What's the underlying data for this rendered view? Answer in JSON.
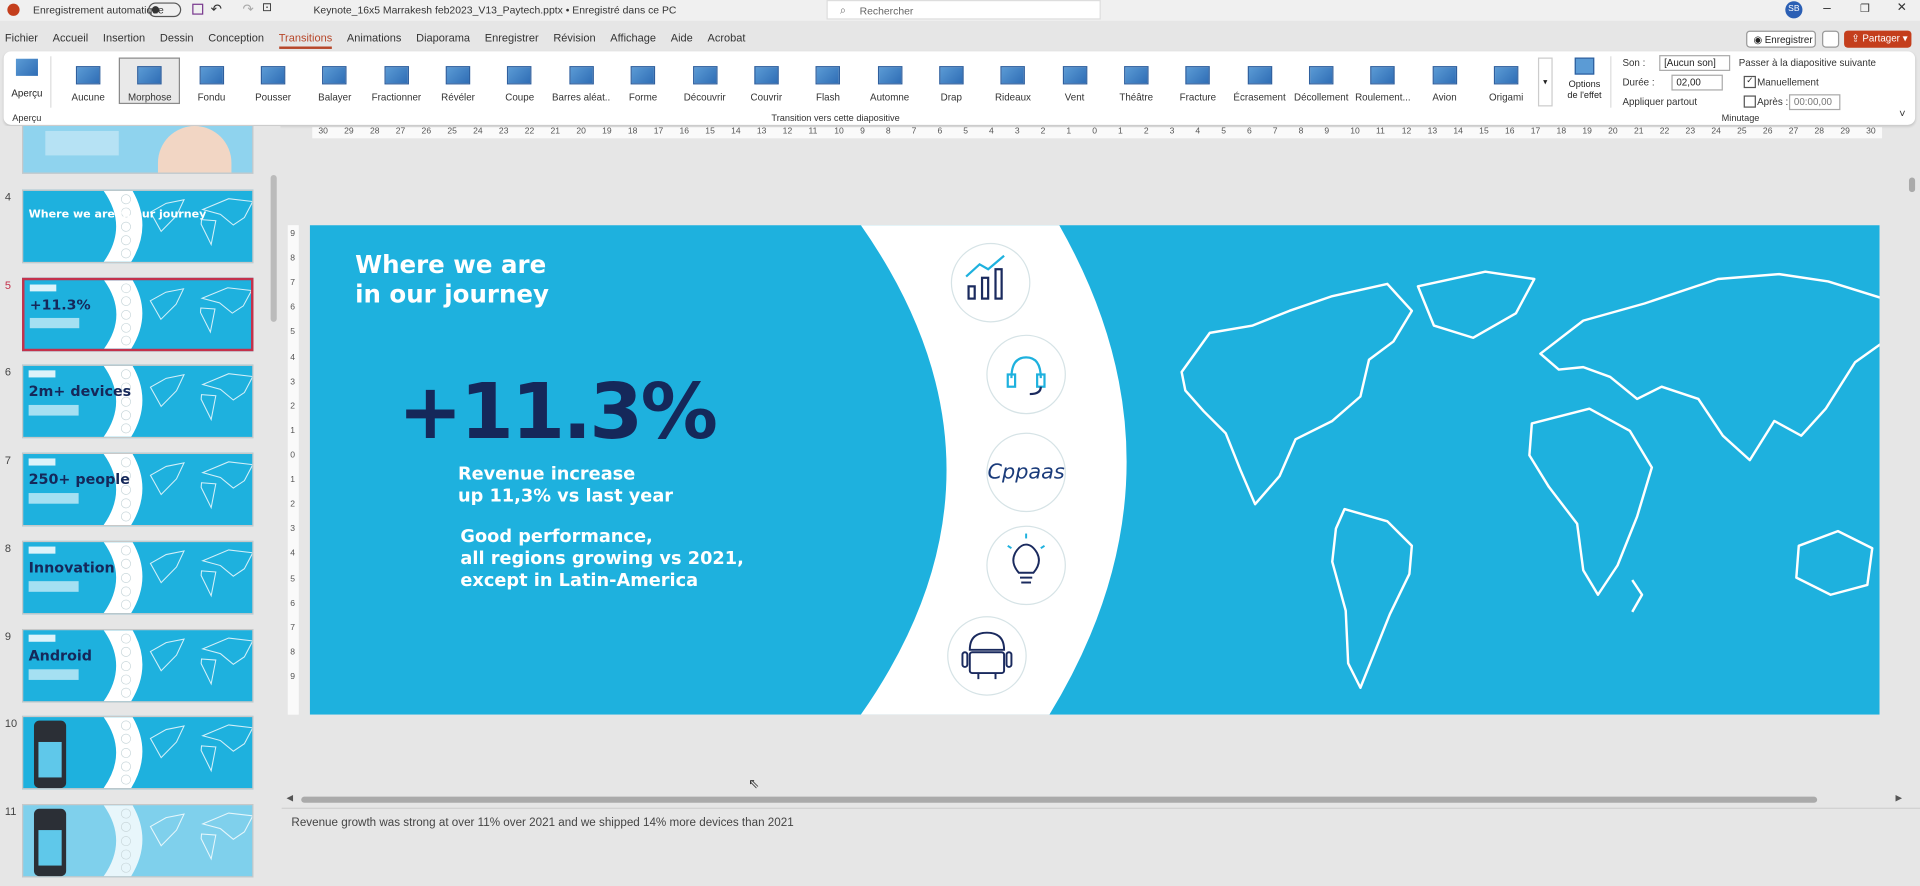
{
  "title_bar": {
    "autosave": "Enregistrement automatique",
    "document_title": "Keynote_16x5 Marrakesh feb2023_V13_Paytech.pptx • Enregistré dans ce PC",
    "search": "Rechercher",
    "user_initials": "SB"
  },
  "menu": {
    "tabs": [
      "Fichier",
      "Accueil",
      "Insertion",
      "Dessin",
      "Conception",
      "Transitions",
      "Animations",
      "Diaporama",
      "Enregistrer",
      "Révision",
      "Affichage",
      "Aide",
      "Acrobat"
    ],
    "active_index": 5,
    "record": "Enregistrer",
    "share": "Partager"
  },
  "ribbon": {
    "preview": "Aperçu",
    "transitions": [
      "Aucune",
      "Morphose",
      "Fondu",
      "Pousser",
      "Balayer",
      "Fractionner",
      "Révéler",
      "Coupe",
      "Barres aléat...",
      "Forme",
      "Découvrir",
      "Couvrir",
      "Flash",
      "Automne",
      "Drap",
      "Rideaux",
      "Vent",
      "Théâtre",
      "Fracture",
      "Écrasement",
      "Décollement",
      "Roulement...",
      "Avion",
      "Origami"
    ],
    "selected_transition": 1,
    "effect_options": "Options de l'effet",
    "sound_label": "Son :",
    "sound_value": "[Aucun son]",
    "duration_label": "Durée :",
    "duration_value": "02,00",
    "apply_all": "Appliquer partout",
    "advance_label": "Passer à la diapositive suivante",
    "on_click": "Manuellement",
    "after": "Après :",
    "after_value": "00:00,00",
    "groups": [
      "Aperçu",
      "Transition vers cette diapositive",
      "Minutage"
    ]
  },
  "ruler": {
    "horizontal": [
      30,
      29,
      28,
      27,
      26,
      25,
      24,
      23,
      22,
      21,
      20,
      19,
      18,
      17,
      16,
      15,
      14,
      13,
      12,
      11,
      10,
      9,
      8,
      7,
      6,
      5,
      4,
      3,
      2,
      1,
      0,
      1,
      2,
      3,
      4,
      5,
      6,
      7,
      8,
      9,
      10,
      11,
      12,
      13,
      14,
      15,
      16,
      17,
      18,
      19,
      20,
      21,
      22,
      23,
      24,
      25,
      26,
      27,
      28,
      29,
      30
    ],
    "vertical": [
      9,
      8,
      7,
      6,
      5,
      4,
      3,
      2,
      1,
      0,
      1,
      2,
      3,
      4,
      5,
      6,
      7,
      8,
      9
    ]
  },
  "thumbnails": [
    {
      "number": "4",
      "headline": "Where we are in our journey"
    },
    {
      "number": "5",
      "headline": "+11.3%"
    },
    {
      "number": "6",
      "headline": "2m+ devices"
    },
    {
      "number": "7",
      "headline": "250+ people"
    },
    {
      "number": "8",
      "headline": "Innovation"
    },
    {
      "number": "9",
      "headline": "Android"
    },
    {
      "number": "10"
    },
    {
      "number": "11"
    }
  ],
  "selected_thumbnail": 1,
  "slide": {
    "title_line1": "Where we are",
    "title_line2": "in our journey",
    "kpi": "+11.3%",
    "kpi_caption": [
      "Revenue increase",
      "up 11,3% vs last year"
    ],
    "performance": [
      "Good performance,",
      "all regions growing vs 2021,",
      "except in Latin-America"
    ],
    "logo": "Cppaas"
  },
  "notes": "Revenue growth was strong at over 11% over 2021 and we shipped 14% more devices than 2021"
}
